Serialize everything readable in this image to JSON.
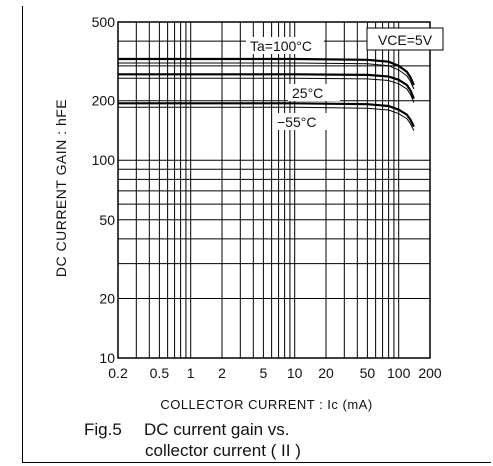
{
  "chart_data": {
    "type": "line",
    "x_scale": "log",
    "y_scale": "log",
    "xlim": [
      0.2,
      200
    ],
    "ylim": [
      10,
      500
    ],
    "x_ticks": [
      "0.2",
      "0.5",
      "1",
      "2",
      "5",
      "10",
      "20",
      "50",
      "100",
      "200"
    ],
    "y_ticks": [
      "10",
      "20",
      "50",
      "100",
      "200",
      "500"
    ],
    "ylabel": "DC CURRENT GAIN : hFE",
    "xlabel": "COLLECTOR CURRENT : Ic (mA)",
    "grid": true,
    "condition_label": "VCE=5V",
    "series": [
      {
        "name": "Ta=100°C",
        "x": [
          0.2,
          1,
          10,
          50,
          80,
          100,
          120,
          130,
          140
        ],
        "y": [
          325,
          325,
          325,
          322,
          315,
          300,
          280,
          262,
          240
        ]
      },
      {
        "name": "25°C",
        "x": [
          0.2,
          1,
          10,
          50,
          80,
          100,
          120,
          130,
          140
        ],
        "y": [
          272,
          272,
          272,
          270,
          265,
          255,
          240,
          225,
          205
        ]
      },
      {
        "name": "−55°C",
        "x": [
          0.2,
          1,
          10,
          50,
          80,
          100,
          120,
          130,
          140
        ],
        "y": [
          194,
          194,
          194,
          192,
          188,
          180,
          170,
          160,
          148
        ]
      }
    ]
  },
  "caption": {
    "figure_number": "Fig.5",
    "title_line1": "DC current gain vs.",
    "title_line2": "collector current ( II )"
  }
}
